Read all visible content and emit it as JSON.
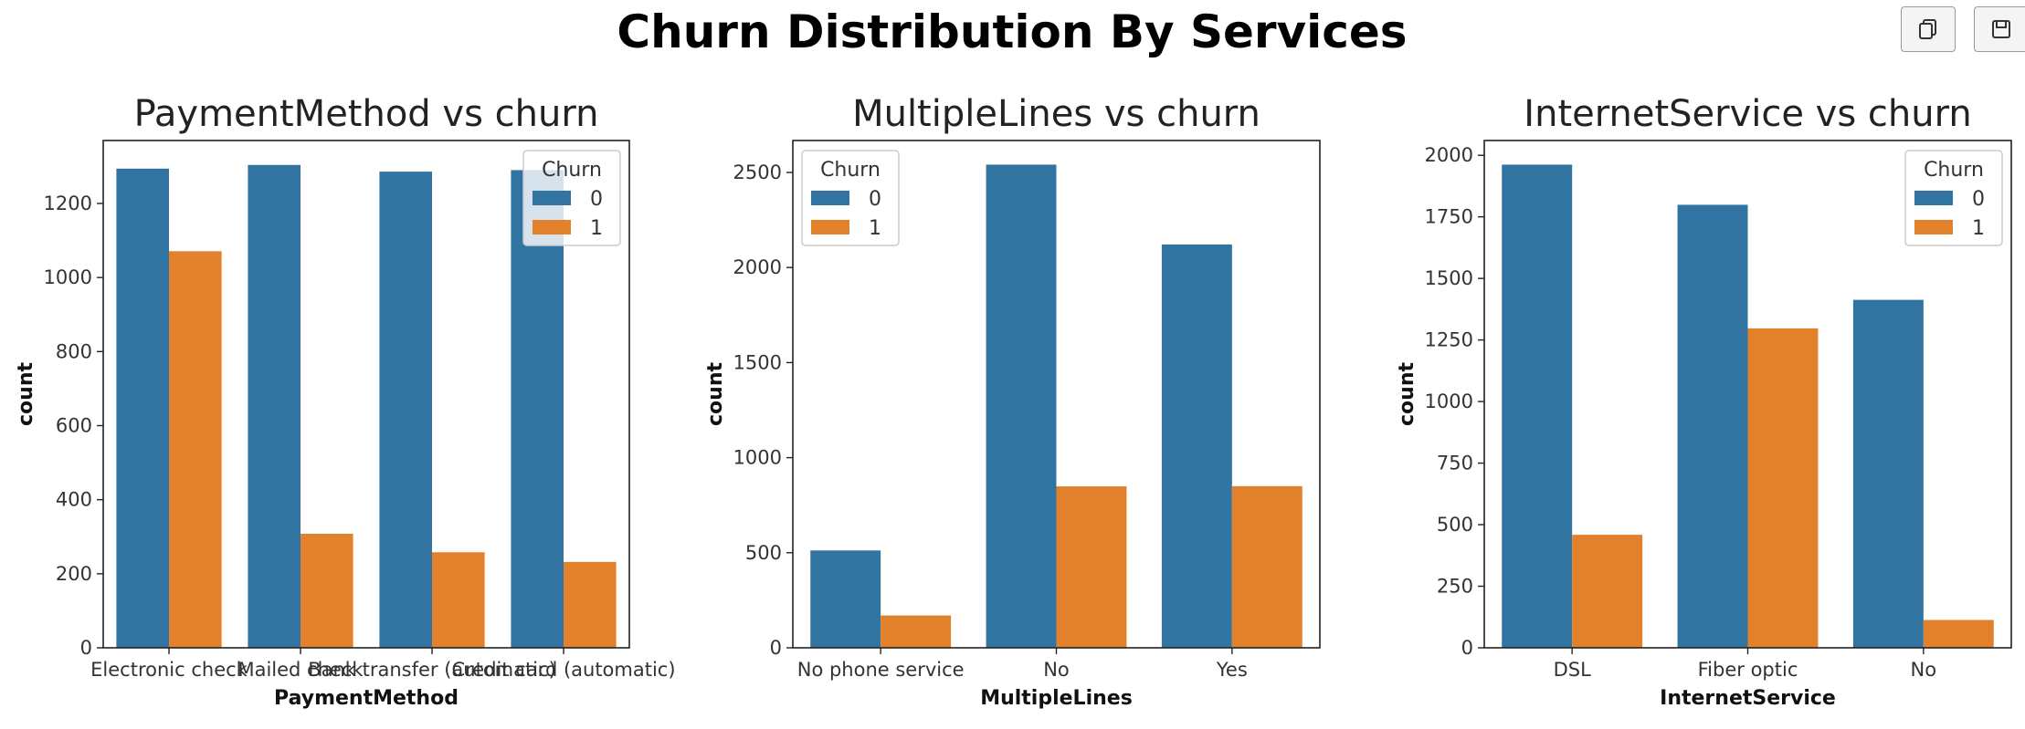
{
  "figure": {
    "suptitle": "Churn Distribution By Services"
  },
  "toolbar": {
    "copy_icon": "copy-icon",
    "save_icon": "save-icon"
  },
  "colors": {
    "churn_0": "#3274a1",
    "churn_1": "#e1812c"
  },
  "chart_data": [
    {
      "type": "bar",
      "title": "PaymentMethod vs churn",
      "xlabel": "PaymentMethod",
      "ylabel": "count",
      "categories": [
        "Electronic check",
        "Mailed check",
        "Bank transfer (automatic)",
        "Credit card (automatic)"
      ],
      "series": [
        {
          "name": "0",
          "values": [
            1294,
            1304,
            1286,
            1290
          ]
        },
        {
          "name": "1",
          "values": [
            1071,
            308,
            258,
            232
          ]
        }
      ],
      "ylim": [
        0,
        1370
      ],
      "yticks": [
        0,
        200,
        400,
        600,
        800,
        1000,
        1200
      ],
      "legend": {
        "title": "Churn",
        "placement": "upper right"
      },
      "grid": false
    },
    {
      "type": "bar",
      "title": "MultipleLines vs churn",
      "xlabel": "MultipleLines",
      "ylabel": "count",
      "categories": [
        "No phone service",
        "No",
        "Yes"
      ],
      "series": [
        {
          "name": "0",
          "values": [
            512,
            2541,
            2121
          ]
        },
        {
          "name": "1",
          "values": [
            170,
            849,
            850
          ]
        }
      ],
      "ylim": [
        0,
        2668
      ],
      "yticks": [
        0,
        500,
        1000,
        1500,
        2000,
        2500
      ],
      "legend": {
        "title": "Churn",
        "placement": "upper left"
      },
      "grid": false
    },
    {
      "type": "bar",
      "title": "InternetService vs churn",
      "xlabel": "InternetService",
      "ylabel": "count",
      "categories": [
        "DSL",
        "Fiber optic",
        "No"
      ],
      "series": [
        {
          "name": "0",
          "values": [
            1962,
            1799,
            1413
          ]
        },
        {
          "name": "1",
          "values": [
            459,
            1297,
            113
          ]
        }
      ],
      "ylim": [
        0,
        2060
      ],
      "yticks": [
        0,
        250,
        500,
        750,
        1000,
        1250,
        1500,
        1750,
        2000
      ],
      "legend": {
        "title": "Churn",
        "placement": "upper right"
      },
      "grid": false
    }
  ]
}
